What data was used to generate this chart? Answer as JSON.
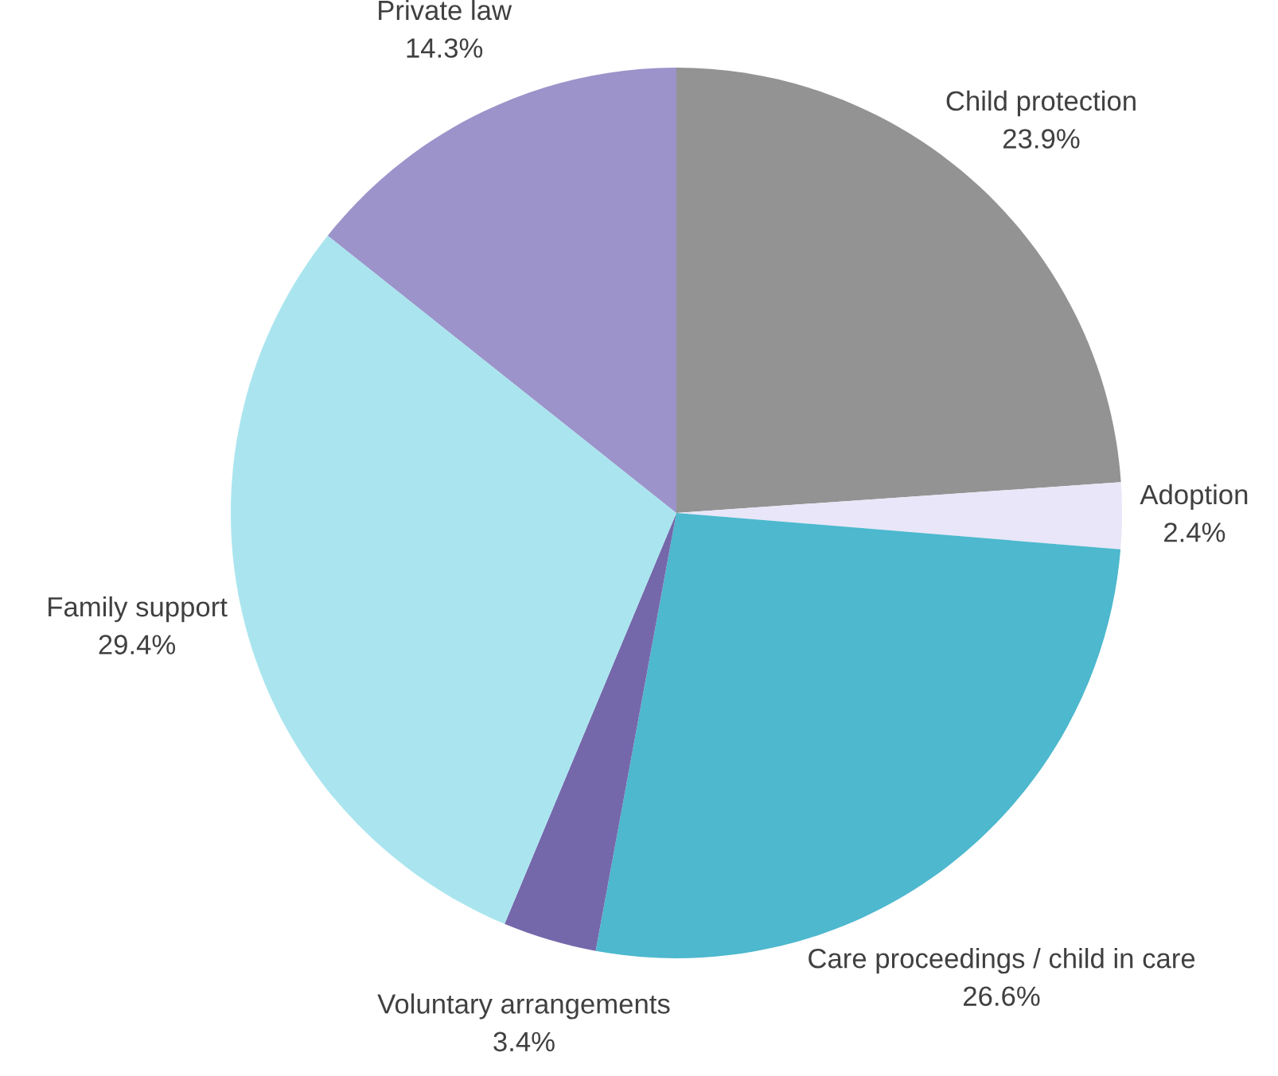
{
  "chart_data": {
    "type": "pie",
    "categories": [
      "Child protection",
      "Adoption",
      "Care proceedings / child in care",
      "Voluntary arrangements",
      "Family support",
      "Private law"
    ],
    "values": [
      23.9,
      2.4,
      26.6,
      3.4,
      29.4,
      14.3
    ],
    "value_labels": [
      "23.9%",
      "2.4%",
      "26.6%",
      "3.4%",
      "29.4%",
      "14.3%"
    ],
    "colors": [
      "#939393",
      "#e8e6f8",
      "#4db8ce",
      "#7468ab",
      "#aae5ef",
      "#9b93ca"
    ]
  }
}
